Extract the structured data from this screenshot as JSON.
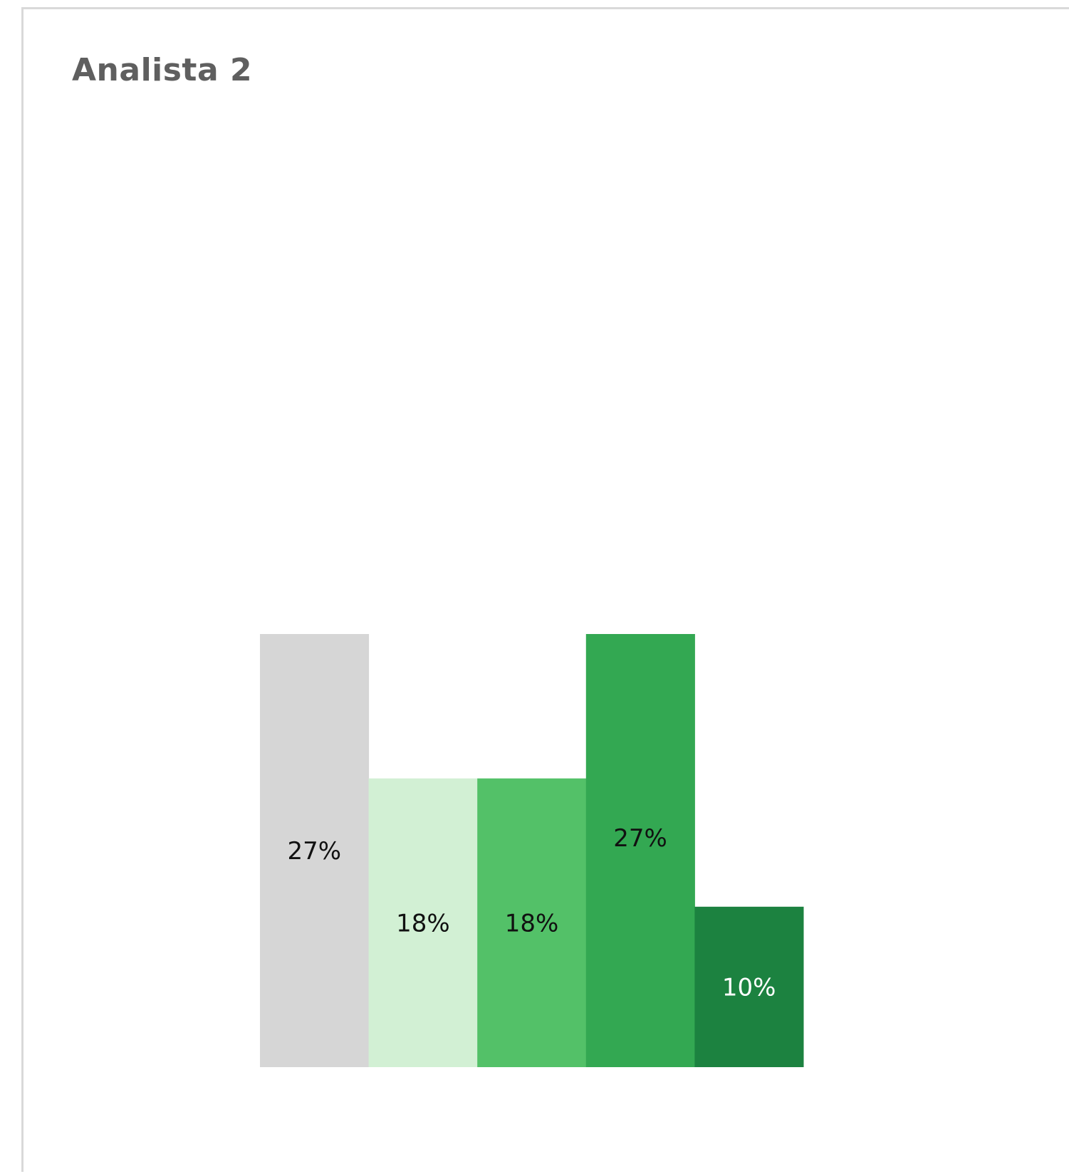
{
  "card": {
    "title": "Analista 2"
  },
  "chart_data": {
    "type": "bar",
    "title": "Analista 2",
    "xlabel": "",
    "ylabel": "",
    "categories": [
      "",
      "",
      "",
      "",
      ""
    ],
    "values": [
      27,
      18,
      18,
      27,
      10
    ],
    "labels": [
      "27%",
      "18%",
      "18%",
      "27%",
      "10%"
    ],
    "colors": [
      "#d6d6d6",
      "#d2f0d4",
      "#53c168",
      "#33a852",
      "#1c8240"
    ],
    "label_colors": [
      "#111111",
      "#111111",
      "#111111",
      "#111111",
      "#ffffff"
    ],
    "ylim": [
      0,
      27
    ],
    "grid": false,
    "legend": "none"
  }
}
